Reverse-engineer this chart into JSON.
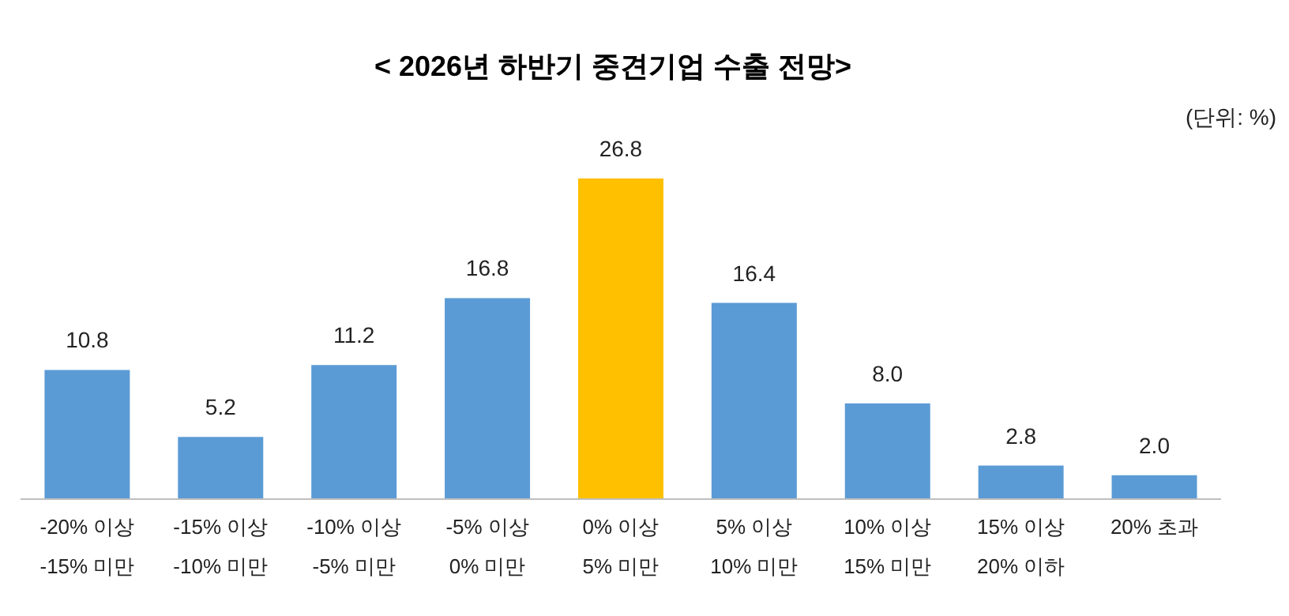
{
  "chart_data": {
    "type": "bar",
    "title": "< 2026년 하반기 중견기업 수출 전망>",
    "annotations": [
      "(단위: %)"
    ],
    "categories": [
      "-20% 이상\n-15% 미만",
      "-15% 이상\n-10% 미만",
      "-10% 이상\n-5% 미만",
      "-5% 이상\n0% 미만",
      "0% 이상\n5% 미만",
      "5% 이상\n10% 미만",
      "10% 이상\n15% 미만",
      "15% 이상\n20% 이하",
      "20% 초과"
    ],
    "values": [
      10.8,
      5.2,
      11.2,
      16.8,
      26.8,
      16.4,
      8.0,
      2.8,
      2.0
    ],
    "value_labels": [
      "10.8",
      "5.2",
      "11.2",
      "16.8",
      "26.8",
      "16.4",
      "8.0",
      "2.8",
      "2.0"
    ],
    "colors": [
      "#5b9bd5",
      "#5b9bd5",
      "#5b9bd5",
      "#5b9bd5",
      "#ffc000",
      "#5b9bd5",
      "#5b9bd5",
      "#5b9bd5",
      "#5b9bd5"
    ],
    "grid": false,
    "legend": false
  }
}
